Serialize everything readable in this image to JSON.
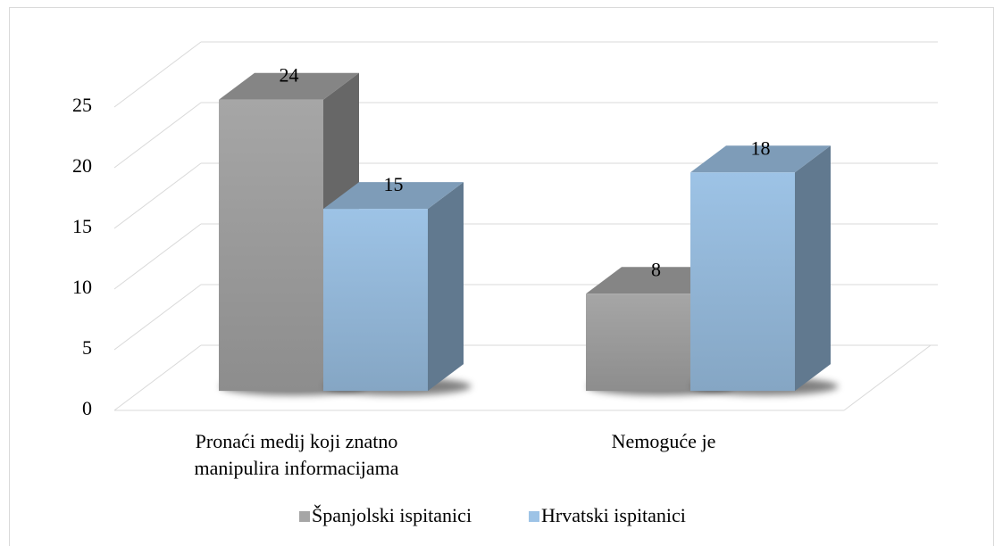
{
  "chart_data": {
    "type": "bar3d",
    "categories": [
      "Pronaći medij koji znatno manipulira informacijama",
      "Nemoguće je"
    ],
    "series": [
      {
        "name": "Španjolski ispitanici",
        "color": "#a6a6a6",
        "values": [
          24,
          8
        ]
      },
      {
        "name": "Hrvatski ispitanici",
        "color": "#9dc3e6",
        "values": [
          15,
          18
        ]
      }
    ],
    "ylim": [
      0,
      25
    ],
    "yticks": [
      0,
      5,
      10,
      15,
      20,
      25
    ],
    "grid": true,
    "legend": "bottom"
  }
}
